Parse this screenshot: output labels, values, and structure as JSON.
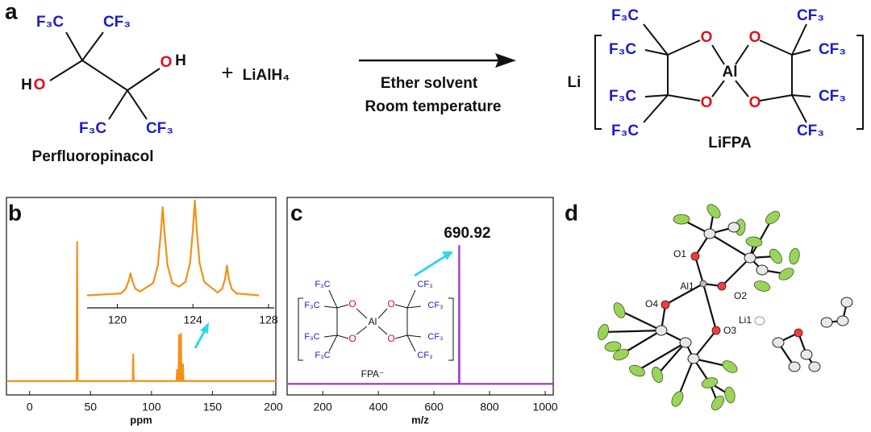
{
  "panel_labels": [
    "a",
    "b",
    "c",
    "d"
  ],
  "scheme": {
    "reactant_groups": [
      "F₃C",
      "CF₃",
      "F₃C",
      "CF₃"
    ],
    "hydroxyl_left": [
      "H",
      "O"
    ],
    "hydroxyl_right": [
      "O",
      "H"
    ],
    "reactant_name": "Perfluoropinacol",
    "plus": "+",
    "reagent": "LiAlH₄",
    "conditions": [
      "Ether solvent",
      "Room temperature"
    ],
    "product_cation": "Li",
    "product_groups": [
      "F₃C",
      "F₃C",
      "F₃C",
      "F₃C",
      "CF₃",
      "CF₃",
      "CF₃",
      "CF₃"
    ],
    "product_atoms": [
      "O",
      "O",
      "O",
      "O",
      "Al"
    ],
    "product_name": "LiFPA"
  },
  "chart_data": [
    {
      "type": "line",
      "xlabel": "ppm",
      "color": "#f39019",
      "x": [
        -19,
        38.6,
        39,
        39.4,
        84.6,
        85,
        85.4,
        120.6,
        121,
        121.4,
        122.2,
        122.6,
        123,
        123.8,
        124.2,
        124.6,
        125.4,
        125.8,
        126.2,
        202
      ],
      "values": [
        0,
        0,
        100,
        0,
        0,
        19,
        0,
        0,
        8,
        0,
        0,
        33,
        0,
        0,
        34,
        0,
        0,
        12,
        0,
        0
      ],
      "xlim": [
        -19,
        202
      ],
      "ylim": [
        -10,
        132
      ],
      "xticks": [
        0,
        50,
        100,
        150,
        200
      ]
    },
    {
      "type": "line",
      "color": "#f39019",
      "x": [
        118.4,
        120.2,
        120.45,
        120.6,
        120.7,
        120.8,
        120.95,
        121.2,
        121.9,
        122.15,
        122.3,
        122.4,
        122.5,
        122.65,
        122.9,
        123.25,
        123.6,
        123.85,
        124.0,
        124.1,
        124.2,
        124.35,
        124.6,
        125.3,
        125.55,
        125.7,
        125.8,
        125.9,
        126.05,
        126.3,
        127.5
      ],
      "values": [
        1,
        3,
        8,
        16,
        24,
        16,
        8,
        5,
        14,
        33,
        66,
        93,
        66,
        33,
        14,
        10,
        15,
        35,
        70,
        100,
        70,
        35,
        15,
        4,
        8,
        18,
        32,
        18,
        8,
        3,
        1
      ],
      "xlim": [
        118.4,
        128.3
      ],
      "ylim": [
        -12,
        103
      ],
      "xticks": [
        120,
        124,
        128
      ]
    },
    {
      "type": "line",
      "xlabel": "m/z",
      "color": "#9b30c8",
      "x": [
        72,
        690.4,
        690.92,
        691.4,
        1029
      ],
      "values": [
        0,
        0,
        100,
        0,
        0
      ],
      "xlim": [
        72,
        1029
      ],
      "ylim": [
        -8,
        135
      ],
      "xticks": [
        200,
        400,
        600,
        800,
        1000
      ]
    }
  ],
  "fpa_structure": {
    "groups": [
      "F₃C",
      "F₃C",
      "F₃C",
      "F₃C",
      "CF₃",
      "CF₃",
      "CF₃",
      "CF₃"
    ],
    "atoms": [
      "O",
      "O",
      "O",
      "O",
      "Al"
    ],
    "name": "FPA⁻"
  },
  "crystal_labels": [
    "O1",
    "Al1",
    "O2",
    "O4",
    "O3",
    "Li1"
  ]
}
